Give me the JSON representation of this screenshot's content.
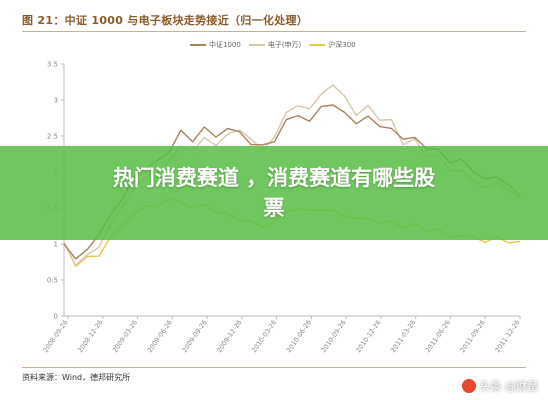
{
  "figure": {
    "title": "图 21：中证 1000 与电子板块走势接近（归一化处理）",
    "source": "资料来源：Wind，德邦研究所"
  },
  "banner": {
    "line1": "热门消费赛道 ，消费赛道有哪些股",
    "line2": "票"
  },
  "watermark": {
    "text": "头条 @财是"
  },
  "colors": {
    "csi1000": "#a9825e",
    "electronics": "#d6c7a8",
    "hs300": "#e8c84a",
    "banner": "#58be46",
    "title": "#8b5a2b"
  },
  "chart_data": {
    "type": "line",
    "title": "",
    "xlabel": "",
    "ylabel": "",
    "ylim": [
      0,
      3.5
    ],
    "yticks": [
      "0",
      "0.5",
      "1",
      "1.5",
      "2",
      "2.5",
      "3",
      "3.5"
    ],
    "x_ticks": [
      "2008-09-26",
      "2008-12-26",
      "2009-03-26",
      "2009-06-26",
      "2009-09-26",
      "2009-12-26",
      "2010-03-26",
      "2010-06-26",
      "2010-09-26",
      "2010-12-26",
      "2011-03-26",
      "2011-06-26",
      "2011-09-26",
      "2011-12-26"
    ],
    "legend_position": "top-center",
    "grid": false,
    "series": [
      {
        "name": "中证1000",
        "color_key": "csi1000",
        "values": [
          1.0,
          0.78,
          0.95,
          1.1,
          1.45,
          1.6,
          1.95,
          2.05,
          2.15,
          2.3,
          2.55,
          2.45,
          2.6,
          2.5,
          2.6,
          2.55,
          2.4,
          2.35,
          2.45,
          2.7,
          2.8,
          2.7,
          2.9,
          2.95,
          2.8,
          2.7,
          2.75,
          2.65,
          2.6,
          2.45,
          2.5,
          2.3,
          2.35,
          2.1,
          2.2,
          2.0,
          1.9,
          1.95,
          1.8,
          1.7
        ]
      },
      {
        "name": "电子(申万)",
        "color_key": "electronics",
        "values": [
          1.0,
          0.72,
          0.85,
          0.95,
          1.3,
          1.5,
          1.8,
          1.9,
          2.0,
          2.15,
          2.35,
          2.3,
          2.45,
          2.4,
          2.5,
          2.6,
          2.45,
          2.3,
          2.5,
          2.8,
          2.95,
          2.85,
          3.1,
          3.2,
          3.05,
          2.8,
          2.9,
          2.75,
          2.7,
          2.4,
          2.45,
          2.2,
          2.25,
          2.0,
          2.05,
          1.85,
          1.8,
          1.85,
          1.75,
          1.65
        ]
      },
      {
        "name": "沪深300",
        "color_key": "hs300",
        "values": [
          1.0,
          0.72,
          0.8,
          0.85,
          1.1,
          1.25,
          1.45,
          1.5,
          1.55,
          1.6,
          1.6,
          1.5,
          1.55,
          1.45,
          1.4,
          1.35,
          1.3,
          1.25,
          1.3,
          1.45,
          1.5,
          1.45,
          1.5,
          1.45,
          1.4,
          1.35,
          1.35,
          1.3,
          1.3,
          1.25,
          1.25,
          1.2,
          1.2,
          1.1,
          1.12,
          1.08,
          1.05,
          1.07,
          1.04,
          1.02
        ]
      }
    ]
  }
}
